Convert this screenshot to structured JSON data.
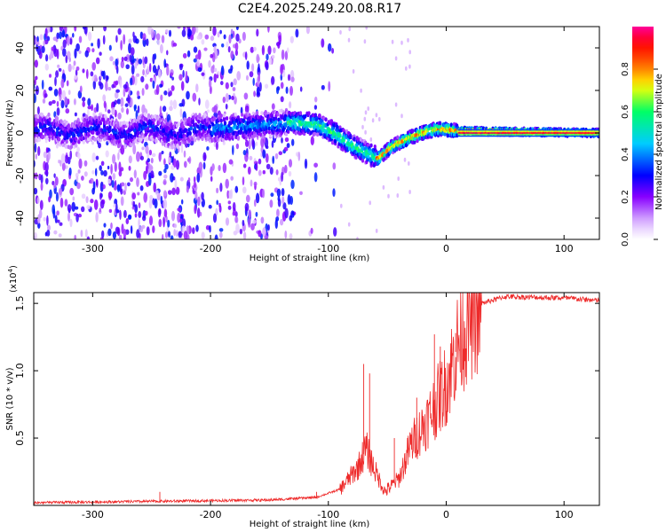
{
  "title": "C2E4.2025.249.20.08.R17",
  "colors": {
    "snr_line": "#ee2a2a",
    "axis": "#000000",
    "colormap": [
      "#ffffff",
      "#ddbbff",
      "#8800ff",
      "#0000ff",
      "#00ccff",
      "#00ff66",
      "#ffff00",
      "#ff6600",
      "#ff0000",
      "#ff0099"
    ]
  },
  "chart_data": [
    {
      "type": "heatmap",
      "name": "spectrogram",
      "xlabel": "Height of straight line (km)",
      "ylabel": "Frequency (Hz)",
      "xlim": [
        -350,
        130
      ],
      "ylim": [
        -50,
        50
      ],
      "xticks": [
        -300,
        -200,
        -100,
        0,
        100
      ],
      "yticks": [
        -40,
        -20,
        0,
        20,
        40
      ],
      "grid": false,
      "ridge": {
        "description_points": [
          {
            "x": -200,
            "f": 2
          },
          {
            "x": -150,
            "f": 4
          },
          {
            "x": -130,
            "f": 5
          },
          {
            "x": -110,
            "f": 4
          },
          {
            "x": -95,
            "f": 0
          },
          {
            "x": -80,
            "f": -6
          },
          {
            "x": -65,
            "f": -10
          },
          {
            "x": -58,
            "f": -12
          },
          {
            "x": -45,
            "f": -6
          },
          {
            "x": -30,
            "f": -2
          },
          {
            "x": -15,
            "f": 1
          },
          {
            "x": -5,
            "f": 2
          },
          {
            "x": 10,
            "f": 1
          },
          {
            "x": 130,
            "f": 0
          }
        ]
      },
      "colorbar": {
        "label": "Normalized spectral amplitude",
        "range": [
          0,
          1
        ],
        "ticks": [
          "0.0",
          "0.2",
          "0.4",
          "0.6",
          "0.8"
        ]
      }
    },
    {
      "type": "line",
      "name": "snr",
      "xlabel": "Height of straight line (km)",
      "ylabel": "SNR (10 * v/v)",
      "scale_label": "(x10",
      "scale_exp": "4",
      "xlim": [
        -350,
        130
      ],
      "ylim": [
        0,
        1.58
      ],
      "xticks": [
        -300,
        -200,
        -100,
        0,
        100
      ],
      "yticks": [
        "0.5",
        "1.0",
        "1.5"
      ],
      "series": [
        {
          "name": "SNR",
          "envelope": [
            {
              "x": -350,
              "y": 0.02
            },
            {
              "x": -250,
              "y": 0.03
            },
            {
              "x": -150,
              "y": 0.04
            },
            {
              "x": -110,
              "y": 0.06
            },
            {
              "x": -90,
              "y": 0.12
            },
            {
              "x": -75,
              "y": 0.28
            },
            {
              "x": -68,
              "y": 0.42
            },
            {
              "x": -60,
              "y": 0.25
            },
            {
              "x": -52,
              "y": 0.1
            },
            {
              "x": -40,
              "y": 0.2
            },
            {
              "x": -30,
              "y": 0.45
            },
            {
              "x": -15,
              "y": 0.65
            },
            {
              "x": 0,
              "y": 0.9
            },
            {
              "x": 10,
              "y": 1.2
            },
            {
              "x": 20,
              "y": 1.4
            },
            {
              "x": 30,
              "y": 1.5
            },
            {
              "x": 50,
              "y": 1.55
            },
            {
              "x": 100,
              "y": 1.54
            },
            {
              "x": 130,
              "y": 1.52
            }
          ],
          "spikes": [
            {
              "x": -243,
              "y": 0.1
            },
            {
              "x": -110,
              "y": 0.1
            },
            {
              "x": -70,
              "y": 1.05
            },
            {
              "x": -65,
              "y": 0.98
            },
            {
              "x": -44,
              "y": 0.5
            },
            {
              "x": -25,
              "y": 0.8
            },
            {
              "x": -10,
              "y": 1.27
            },
            {
              "x": -5,
              "y": 1.18
            },
            {
              "x": 8,
              "y": 1.28
            }
          ]
        }
      ]
    }
  ]
}
